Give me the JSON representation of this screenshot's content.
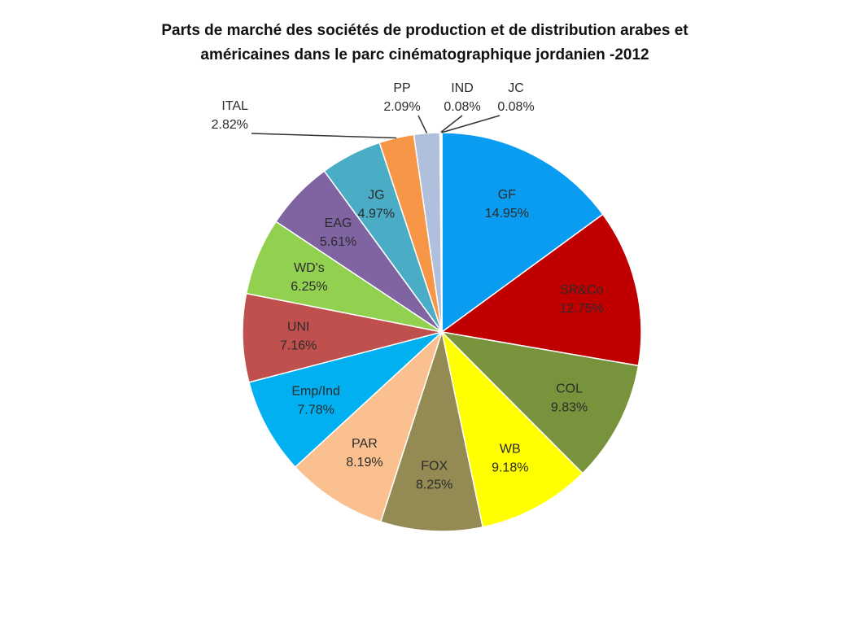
{
  "chart_data": {
    "type": "pie",
    "title": [
      "Parts de marché des sociétés de production et de distribution arabes et",
      "américaines dans le parc cinématographique jordanien -2012"
    ],
    "categories": [
      "GF",
      "SR&Co",
      "COL",
      "WB",
      "FOX",
      "PAR",
      "Emp/Ind",
      "UNI",
      "WD's",
      "EAG",
      "JG",
      "ITAL",
      "PP",
      "IND",
      "JC"
    ],
    "values": [
      14.95,
      12.75,
      9.83,
      9.18,
      8.25,
      8.19,
      7.78,
      7.16,
      6.25,
      5.61,
      4.97,
      2.82,
      2.09,
      0.08,
      0.08
    ],
    "value_labels": [
      "14.95%",
      "12.75%",
      "9.83%",
      "9.18%",
      "8.25%",
      "8.19%",
      "7.78%",
      "7.16%",
      "6.25%",
      "5.61%",
      "4.97%",
      "2.82%",
      "2.09%",
      "0.08%",
      "0.08%"
    ],
    "colors": [
      "#0a9cf0",
      "#c00000",
      "#77933c",
      "#ffff00",
      "#948a54",
      "#fac090",
      "#00b0f0",
      "#c0504d",
      "#92d050",
      "#8064a2",
      "#4bacc6",
      "#f79646",
      "#b0bfdc",
      "#8db3e2",
      "#c6d9f1"
    ]
  }
}
